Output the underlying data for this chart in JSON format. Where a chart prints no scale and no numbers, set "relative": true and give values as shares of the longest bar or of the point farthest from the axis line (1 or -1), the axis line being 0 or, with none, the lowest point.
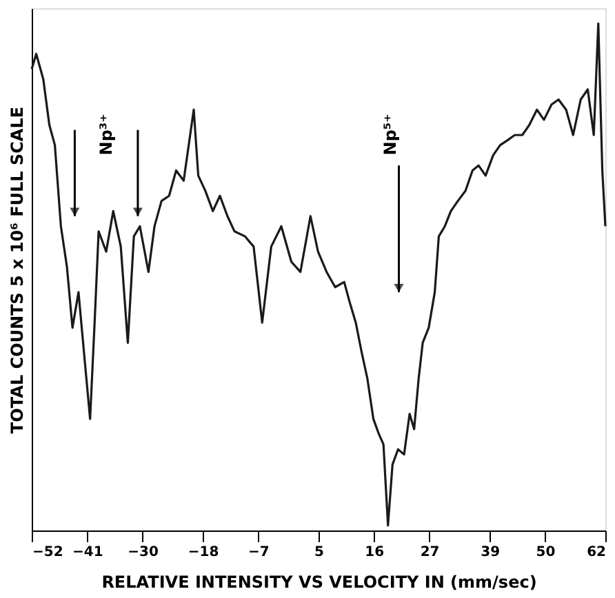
{
  "chart_data": {
    "type": "line",
    "relative": true,
    "xlabel": "RELATIVE INTENSITY VS VELOCITY IN (mm/sec)",
    "ylabel": "TOTAL COUNTS 5 x 10⁶ FULL SCALE",
    "xlim": [
      -52,
      62
    ],
    "xticks": [
      -52,
      -41,
      -30,
      -18,
      -7,
      5,
      16,
      27,
      39,
      50,
      62
    ],
    "grid": false,
    "annotations": [
      "Np³⁺",
      "Np⁵⁺"
    ],
    "x": [
      -52.0,
      -51.1,
      -49.7,
      -48.5,
      -47.4,
      -46.2,
      -45.0,
      -43.9,
      -42.7,
      -41.6,
      -40.4,
      -39.5,
      -38.7,
      -37.2,
      -35.8,
      -34.3,
      -32.9,
      -31.7,
      -30.5,
      -28.8,
      -27.6,
      -26.2,
      -24.7,
      -23.3,
      -21.8,
      -19.8,
      -18.9,
      -17.5,
      -16.0,
      -14.6,
      -13.1,
      -11.7,
      -9.6,
      -7.9,
      -6.2,
      -4.4,
      -2.4,
      -0.4,
      1.4,
      3.4,
      4.9,
      6.6,
      8.3,
      10.1,
      11.2,
      12.4,
      13.6,
      14.7,
      15.9,
      17.0,
      17.9,
      18.8,
      19.7,
      20.8,
      22.0,
      23.1,
      24.0,
      24.9,
      25.7,
      26.9,
      28.1,
      28.9,
      30.1,
      31.3,
      32.7,
      34.2,
      35.6,
      36.8,
      38.2,
      39.7,
      41.1,
      42.6,
      44.0,
      45.5,
      46.9,
      48.4,
      49.8,
      51.3,
      52.7,
      54.2,
      55.6,
      57.1,
      58.5,
      59.7,
      60.6,
      61.4,
      62.0
    ],
    "series": [
      {
        "color": "#1a1a1a",
        "values": [
          0.91,
          0.94,
          0.89,
          0.8,
          0.76,
          0.6,
          0.52,
          0.4,
          0.47,
          0.35,
          0.22,
          0.41,
          0.59,
          0.55,
          0.63,
          0.56,
          0.37,
          0.58,
          0.6,
          0.51,
          0.6,
          0.65,
          0.66,
          0.71,
          0.69,
          0.83,
          0.7,
          0.67,
          0.63,
          0.66,
          0.62,
          0.59,
          0.58,
          0.56,
          0.41,
          0.56,
          0.6,
          0.53,
          0.51,
          0.62,
          0.55,
          0.51,
          0.48,
          0.49,
          0.45,
          0.41,
          0.35,
          0.3,
          0.22,
          0.19,
          0.17,
          0.01,
          0.13,
          0.16,
          0.15,
          0.23,
          0.2,
          0.3,
          0.37,
          0.4,
          0.47,
          0.58,
          0.6,
          0.63,
          0.65,
          0.67,
          0.71,
          0.72,
          0.7,
          0.74,
          0.76,
          0.77,
          0.78,
          0.78,
          0.8,
          0.83,
          0.81,
          0.84,
          0.85,
          0.83,
          0.78,
          0.85,
          0.87,
          0.78,
          1.0,
          0.71,
          0.6
        ]
      }
    ]
  }
}
